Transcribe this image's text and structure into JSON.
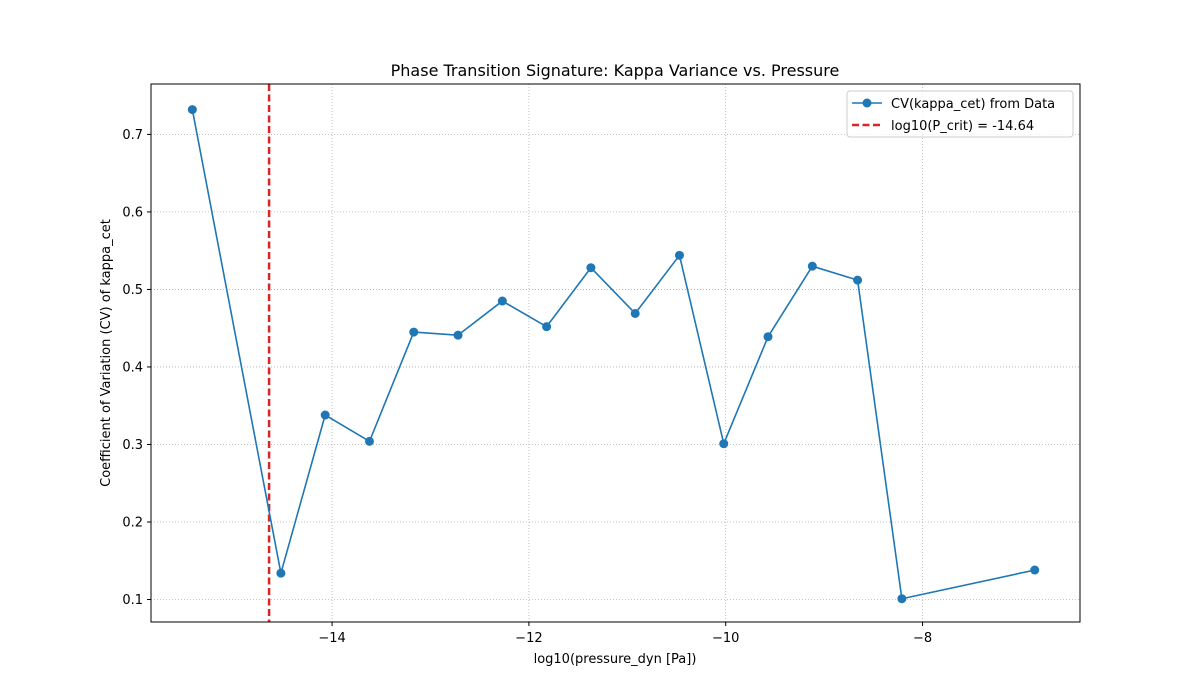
{
  "chart_data": {
    "type": "line",
    "title": "Phase Transition Signature: Kappa Variance vs. Pressure",
    "xlabel": "log10(pressure_dyn [Pa])",
    "ylabel": "Coefficient of Variation (CV) of kappa_cet",
    "xlim": [
      -15.84,
      -6.4
    ],
    "ylim": [
      0.071,
      0.765
    ],
    "xticks": [
      -14,
      -12,
      -10,
      -8
    ],
    "xtick_labels": [
      "−14",
      "−12",
      "−10",
      "−8"
    ],
    "yticks": [
      0.1,
      0.2,
      0.3,
      0.4,
      0.5,
      0.6,
      0.7
    ],
    "ytick_labels": [
      "0.1",
      "0.2",
      "0.3",
      "0.4",
      "0.5",
      "0.6",
      "0.7"
    ],
    "grid": true,
    "legend_position": "top-right",
    "series": [
      {
        "name": "CV(kappa_cet) from Data",
        "color": "#1f77b4",
        "marker": "circle",
        "x": [
          -15.42,
          -14.52,
          -14.07,
          -13.62,
          -13.17,
          -12.72,
          -12.27,
          -11.82,
          -11.37,
          -10.92,
          -10.47,
          -10.02,
          -9.57,
          -9.12,
          -8.66,
          -8.21,
          -6.86
        ],
        "y": [
          0.732,
          0.134,
          0.338,
          0.304,
          0.445,
          0.441,
          0.485,
          0.452,
          0.528,
          0.469,
          0.544,
          0.301,
          0.439,
          0.53,
          0.512,
          0.101,
          0.138
        ]
      }
    ],
    "vlines": [
      {
        "name": "log10(P_crit) = -14.64",
        "x": -14.64,
        "color": "#d62728",
        "style": "dashed"
      }
    ]
  }
}
